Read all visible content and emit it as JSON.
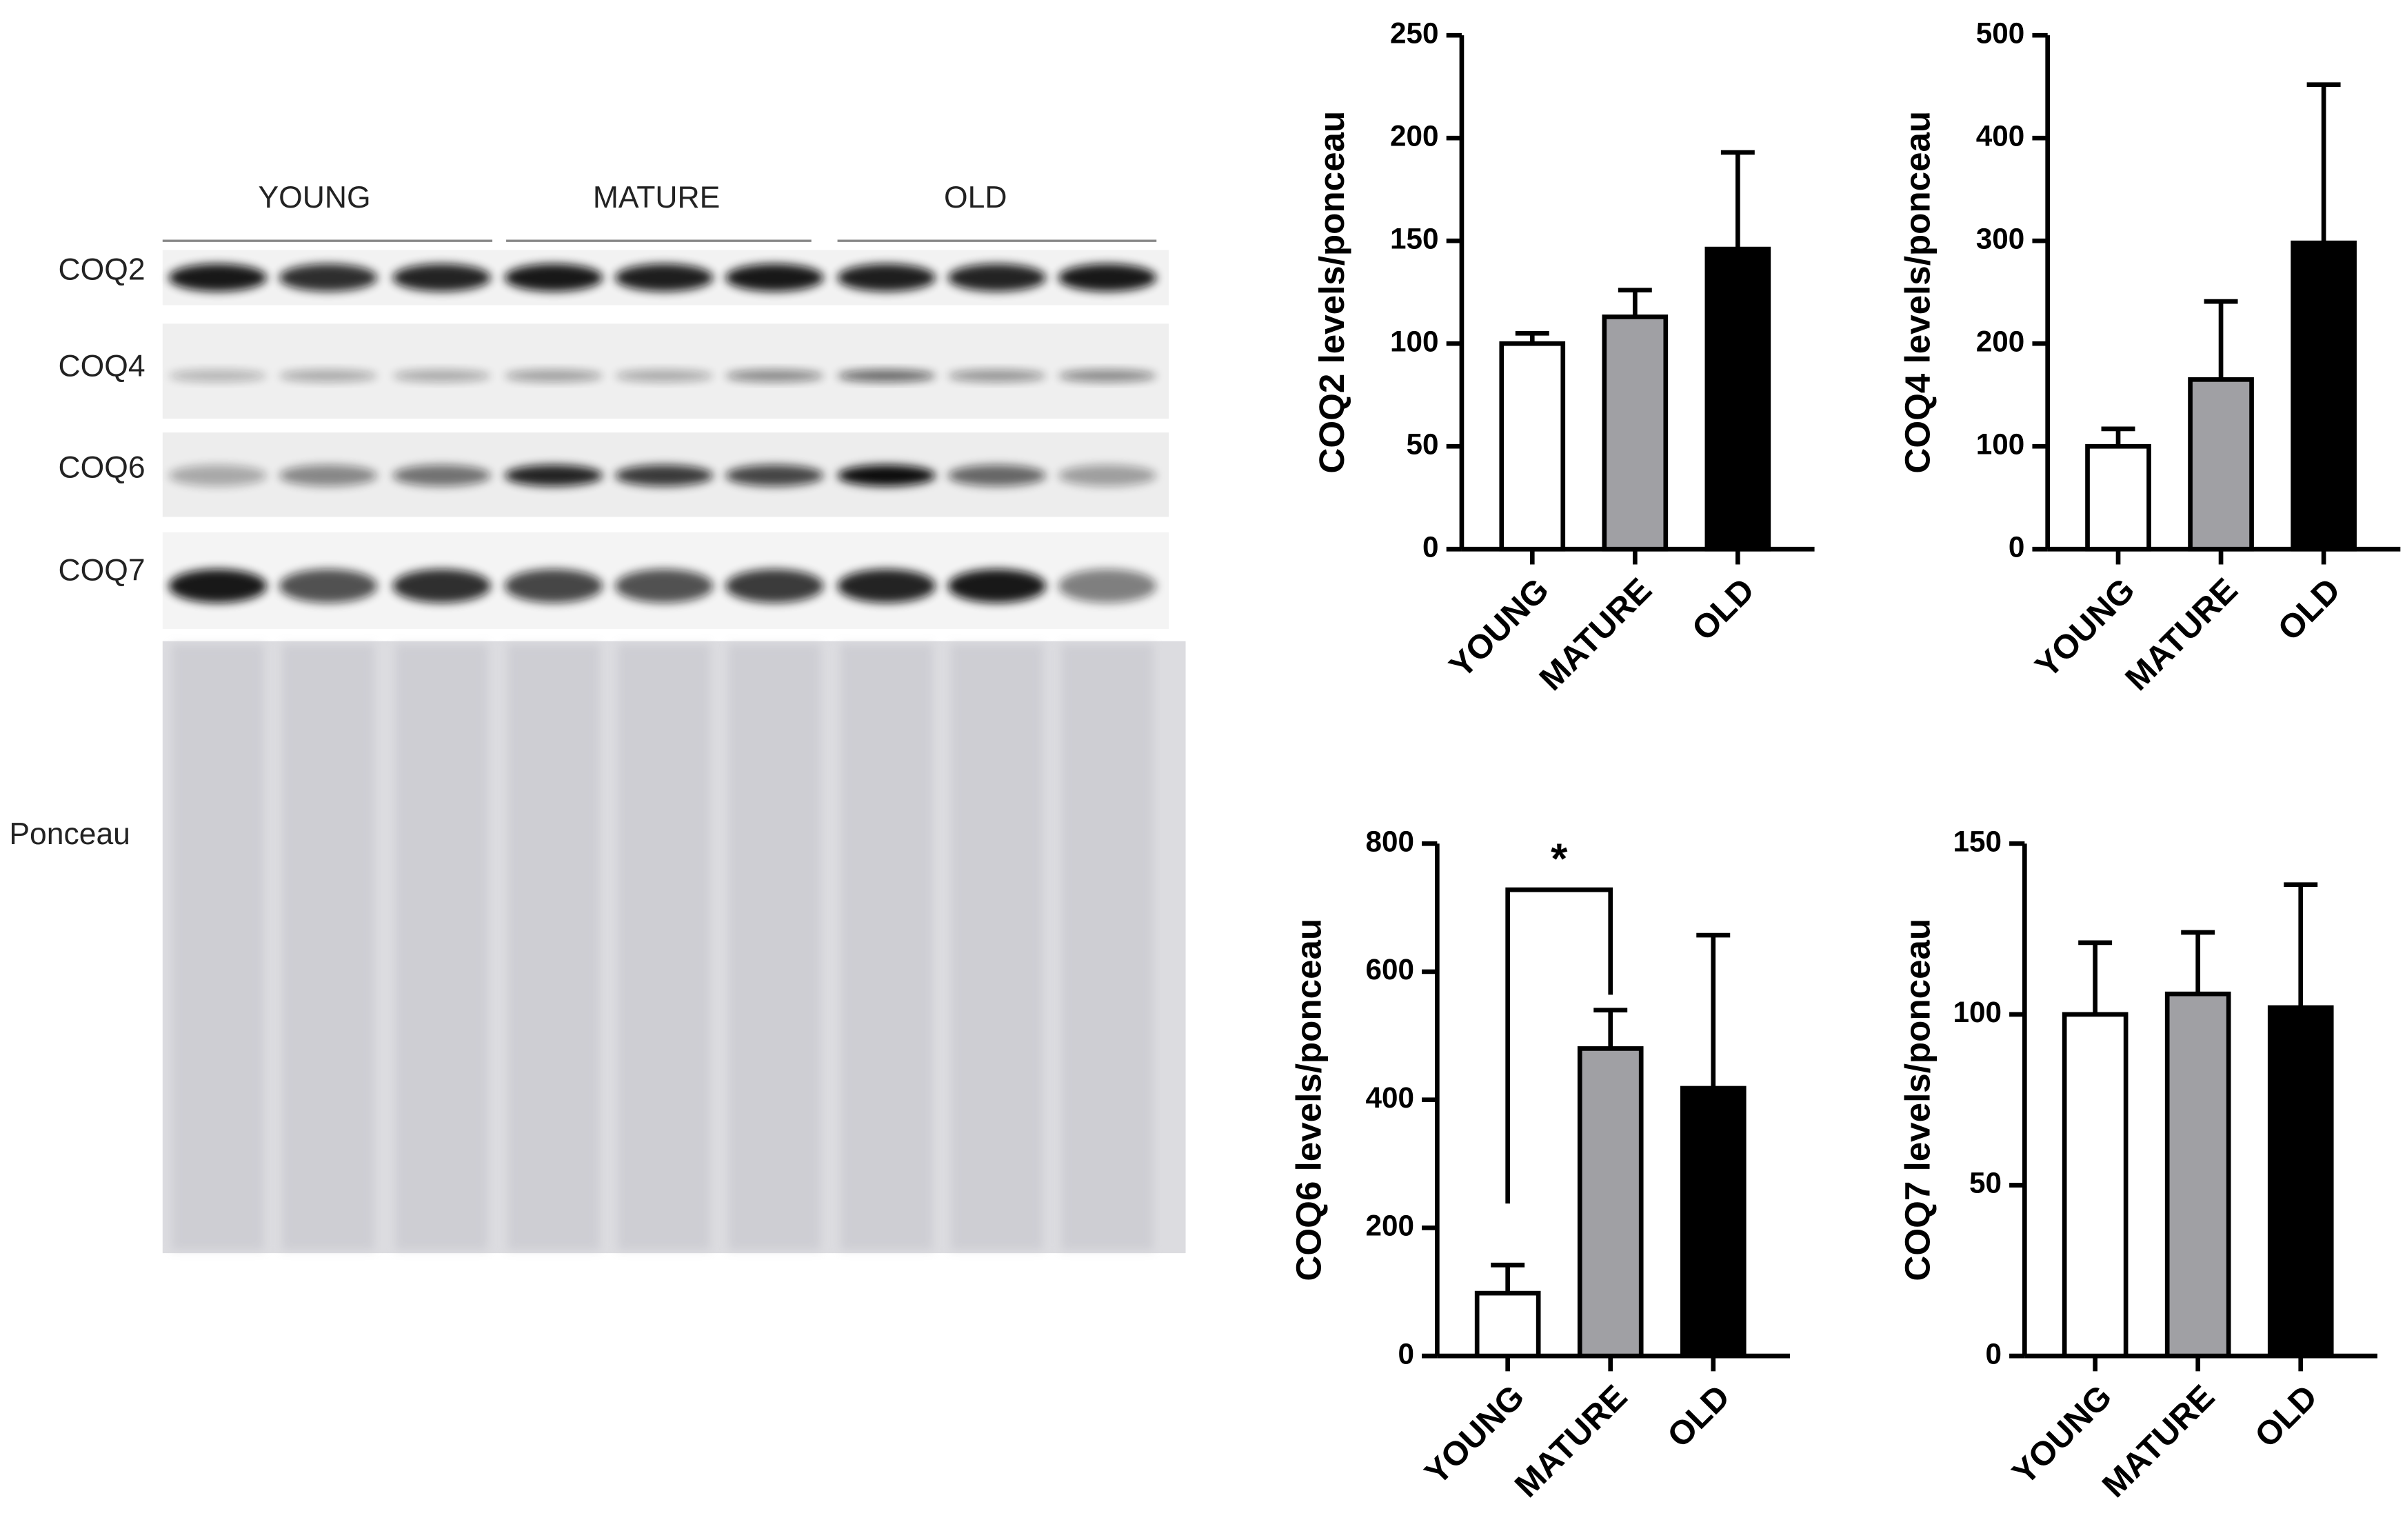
{
  "blot": {
    "groups": [
      "YOUNG",
      "MATURE",
      "OLD"
    ],
    "bands": [
      "COQ2",
      "COQ4",
      "COQ6",
      "COQ7",
      "Ponceau"
    ]
  },
  "chart_data": [
    {
      "type": "bar",
      "ylabel": "COQ2 levels/ponceau",
      "categories": [
        "YOUNG",
        "MATURE",
        "OLD"
      ],
      "values": [
        100,
        113,
        146
      ],
      "errors": [
        5,
        13,
        47
      ],
      "colors": [
        "#ffffff",
        "#a0a0a4",
        "#000000"
      ],
      "ylim": [
        0,
        250
      ],
      "yticks": [
        0,
        50,
        100,
        150,
        200,
        250
      ]
    },
    {
      "type": "bar",
      "ylabel": "COQ4 levels/ponceau",
      "categories": [
        "YOUNG",
        "MATURE",
        "OLD"
      ],
      "values": [
        100,
        165,
        298
      ],
      "errors": [
        17,
        76,
        154
      ],
      "colors": [
        "#ffffff",
        "#a0a0a4",
        "#000000"
      ],
      "ylim": [
        0,
        500
      ],
      "yticks": [
        0,
        100,
        200,
        300,
        400,
        500
      ]
    },
    {
      "type": "bar",
      "ylabel": "COQ6 levels/ponceau",
      "categories": [
        "YOUNG",
        "MATURE",
        "OLD"
      ],
      "values": [
        98,
        480,
        418
      ],
      "errors": [
        44,
        60,
        239
      ],
      "colors": [
        "#ffffff",
        "#a0a0a4",
        "#000000"
      ],
      "ylim": [
        0,
        800
      ],
      "yticks": [
        0,
        200,
        400,
        600,
        800
      ],
      "significance": [
        {
          "text": "*",
          "pair": [
            0,
            1
          ]
        }
      ]
    },
    {
      "type": "bar",
      "ylabel": "COQ7 levels/ponceau",
      "categories": [
        "YOUNG",
        "MATURE",
        "OLD"
      ],
      "values": [
        100,
        106,
        102
      ],
      "errors": [
        21,
        18,
        36
      ],
      "colors": [
        "#ffffff",
        "#a0a0a4",
        "#000000"
      ],
      "ylim": [
        0,
        150
      ],
      "yticks": [
        0,
        50,
        100,
        150
      ]
    }
  ]
}
